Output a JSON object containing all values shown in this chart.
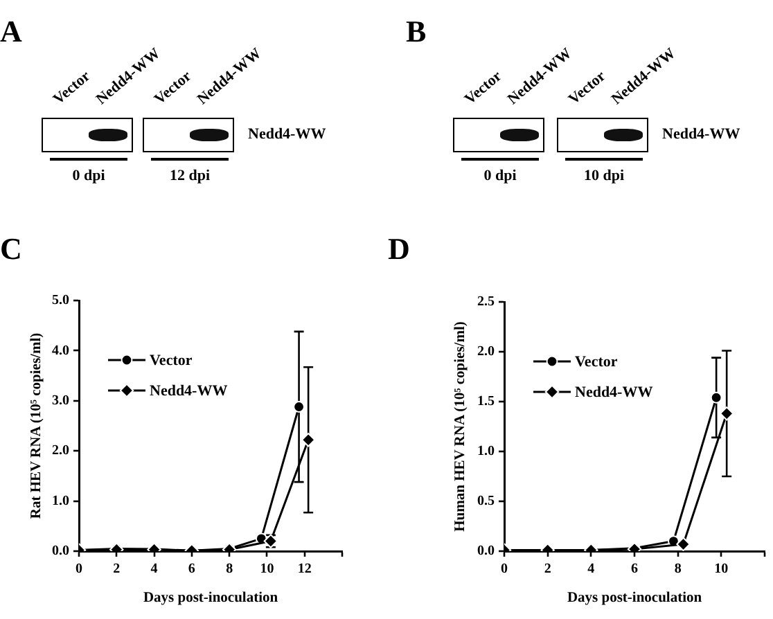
{
  "chart_data": [
    {
      "type": "other",
      "title": "A",
      "annotations": [
        "Vector",
        "Nedd4-WW",
        "Vector",
        "Nedd4-WW",
        "Nedd4-WW",
        "0 dpi",
        "12 dpi"
      ]
    },
    {
      "type": "other",
      "title": "B",
      "annotations": [
        "Vector",
        "Nedd4-WW",
        "Vector",
        "Nedd4-WW",
        "Nedd4-WW",
        "0 dpi",
        "10 dpi"
      ]
    },
    {
      "type": "line",
      "title": "C",
      "xlabel": "Days post-inoculation",
      "ylabel": "Rat HEV RNA (10⁵ copies/ml)",
      "xlim": [
        0,
        14
      ],
      "xticks": [
        0,
        2,
        4,
        6,
        8,
        10,
        12,
        {
          "value": 14,
          "label": null
        }
      ],
      "ylim": [
        0,
        5
      ],
      "yticks": [
        {
          "value": 0,
          "label": "0.0"
        },
        {
          "value": 1,
          "label": "1.0"
        },
        {
          "value": 2,
          "label": "2.0"
        },
        {
          "value": 3,
          "label": "3.0"
        },
        {
          "value": 4,
          "label": "4.0"
        },
        {
          "value": 5,
          "label": "5.0"
        }
      ],
      "grid": false,
      "legend": "top left",
      "line_style": "solid",
      "series": [
        {
          "name": "Vector",
          "color": "#000000",
          "marker": "circle",
          "x": [
            0,
            2,
            4,
            6,
            8,
            9.7,
            11.7
          ],
          "values": [
            0.02,
            0.05,
            0.04,
            0.01,
            0.05,
            0.25,
            2.88
          ],
          "errors": [
            null,
            null,
            null,
            null,
            null,
            null,
            1.5
          ]
        },
        {
          "name": "Nedd4-WW",
          "color": "#000000",
          "marker": "diamond",
          "x": [
            0,
            2,
            4,
            6,
            8,
            10.2,
            12.2
          ],
          "values": [
            0.02,
            0.03,
            0.03,
            0.01,
            0.03,
            0.2,
            2.22
          ],
          "errors": [
            null,
            null,
            null,
            null,
            null,
            0.12,
            1.45
          ]
        }
      ]
    },
    {
      "type": "line",
      "title": "D",
      "xlabel": "Days post-inoculation",
      "ylabel": "Human HEV RNA (10⁵ copies/ml)",
      "xlim": [
        0,
        12
      ],
      "xticks": [
        0,
        2,
        4,
        6,
        8,
        10,
        {
          "value": 12,
          "label": null
        }
      ],
      "ylim": [
        0,
        2.5
      ],
      "yticks": [
        {
          "value": 0,
          "label": "0.0"
        },
        {
          "value": 0.5,
          "label": "0.5"
        },
        {
          "value": 1,
          "label": "1.0"
        },
        {
          "value": 1.5,
          "label": "1.5"
        },
        {
          "value": 2,
          "label": "2.0"
        },
        {
          "value": 2.5,
          "label": "2.5"
        }
      ],
      "grid": false,
      "legend": "top left",
      "line_style": "solid",
      "series": [
        {
          "name": "Vector",
          "color": "#000000",
          "marker": "circle",
          "x": [
            0,
            2,
            4,
            6,
            7.8,
            9.77
          ],
          "values": [
            0.01,
            0.01,
            0.01,
            0.03,
            0.1,
            1.54
          ],
          "errors": [
            null,
            null,
            null,
            null,
            null,
            0.4
          ]
        },
        {
          "name": "Nedd4-WW",
          "color": "#000000",
          "marker": "diamond",
          "x": [
            0,
            2,
            4,
            6,
            8.25,
            10.25
          ],
          "values": [
            0.01,
            0.01,
            0.01,
            0.02,
            0.07,
            1.38
          ],
          "errors": [
            null,
            null,
            null,
            null,
            null,
            0.63
          ]
        }
      ]
    }
  ]
}
